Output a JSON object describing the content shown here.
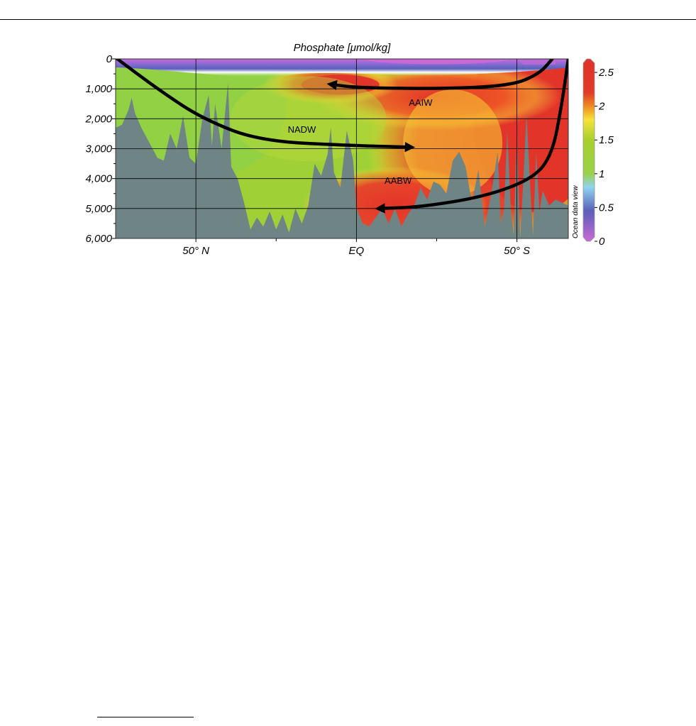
{
  "page": {
    "background": "#ffffff"
  },
  "chart_data": {
    "type": "heatmap",
    "title": "Phosphate [μmol/kg]",
    "ylim": [
      0,
      6000
    ],
    "y_inverted": true,
    "y_ticks": [
      {
        "value": 0,
        "label": "0"
      },
      {
        "value": 1000,
        "label": "1,000"
      },
      {
        "value": 2000,
        "label": "2,000"
      },
      {
        "value": 3000,
        "label": "3,000"
      },
      {
        "value": 4000,
        "label": "4,000"
      },
      {
        "value": 5000,
        "label": "5,000"
      },
      {
        "value": 6000,
        "label": "6,000"
      }
    ],
    "x_ticks": [
      {
        "label": "50° N",
        "lat": 50
      },
      {
        "label": "EQ",
        "lat": 0
      },
      {
        "label": "50° S",
        "lat": -50
      }
    ],
    "xlim_lat": [
      75,
      -66
    ],
    "grid": true,
    "colorbar": {
      "min": 0,
      "max": 2.7,
      "ticks": [
        {
          "value": 0,
          "label": "0"
        },
        {
          "value": 0.5,
          "label": "0.5"
        },
        {
          "value": 1,
          "label": "1"
        },
        {
          "value": 1.5,
          "label": "1.5"
        },
        {
          "value": 2,
          "label": "2"
        },
        {
          "value": 2.5,
          "label": "2.5"
        }
      ],
      "colors": [
        {
          "value": 0,
          "color": "#c86ad6"
        },
        {
          "value": 0.45,
          "color": "#5a5fb8"
        },
        {
          "value": 0.8,
          "color": "#8fd3f0"
        },
        {
          "value": 1.0,
          "color": "#9ad14a"
        },
        {
          "value": 1.5,
          "color": "#a8d02c"
        },
        {
          "value": 1.8,
          "color": "#f6e23a"
        },
        {
          "value": 2.0,
          "color": "#f08a20"
        },
        {
          "value": 2.2,
          "color": "#e03a28"
        },
        {
          "value": 2.7,
          "color": "#e0302a"
        }
      ],
      "side_label": "Ocean data view"
    },
    "water_masses": [
      {
        "label": "AAIW",
        "lat": -20,
        "depth": 1450
      },
      {
        "label": "NADW",
        "lat": 17,
        "depth": 2350
      },
      {
        "label": "AABW",
        "lat": -13,
        "depth": 4050
      }
    ],
    "flows": [
      {
        "name": "NADW",
        "direction": "southward",
        "points": [
          [
            74.5,
            0
          ],
          [
            62,
            1000
          ],
          [
            48,
            2000
          ],
          [
            30,
            2750
          ],
          [
            0,
            2900
          ],
          [
            -17,
            2950
          ]
        ]
      },
      {
        "name": "AAIW",
        "direction": "northward",
        "points": [
          [
            -61,
            0
          ],
          [
            -57,
            500
          ],
          [
            -48,
            900
          ],
          [
            -25,
            1000
          ],
          [
            0,
            960
          ],
          [
            8,
            850
          ]
        ]
      },
      {
        "name": "AABW",
        "direction": "northward",
        "points": [
          [
            -66,
            0
          ],
          [
            -64,
            1500
          ],
          [
            -61,
            3200
          ],
          [
            -55,
            4000
          ],
          [
            -40,
            4600
          ],
          [
            -20,
            4950
          ],
          [
            -7,
            5000
          ]
        ]
      }
    ],
    "bathymetry_depth_m": [
      [
        75,
        2300
      ],
      [
        73,
        2200
      ],
      [
        71,
        1700
      ],
      [
        70,
        1300
      ],
      [
        69,
        1800
      ],
      [
        67,
        2300
      ],
      [
        64,
        2900
      ],
      [
        62,
        3300
      ],
      [
        60,
        3400
      ],
      [
        58,
        2500
      ],
      [
        56,
        3000
      ],
      [
        54,
        1900
      ],
      [
        52,
        3300
      ],
      [
        50,
        3500
      ],
      [
        48,
        2000
      ],
      [
        46,
        1200
      ],
      [
        45,
        2900
      ],
      [
        44,
        1500
      ],
      [
        42,
        3000
      ],
      [
        40,
        800
      ],
      [
        39,
        3600
      ],
      [
        37,
        4000
      ],
      [
        35,
        4800
      ],
      [
        33,
        5700
      ],
      [
        31,
        5300
      ],
      [
        29,
        5600
      ],
      [
        27,
        5100
      ],
      [
        25,
        5700
      ],
      [
        23,
        5200
      ],
      [
        21,
        5800
      ],
      [
        19,
        5000
      ],
      [
        17,
        5500
      ],
      [
        15,
        4900
      ],
      [
        13,
        3500
      ],
      [
        11,
        3900
      ],
      [
        9,
        3200
      ],
      [
        8,
        2300
      ],
      [
        7,
        3800
      ],
      [
        5,
        4300
      ],
      [
        3,
        2400
      ],
      [
        1,
        3400
      ],
      [
        0,
        5000
      ],
      [
        -2,
        5500
      ],
      [
        -4,
        5600
      ],
      [
        -6,
        5300
      ],
      [
        -8,
        5000
      ],
      [
        -10,
        5500
      ],
      [
        -12,
        5000
      ],
      [
        -14,
        5600
      ],
      [
        -16,
        5200
      ],
      [
        -18,
        4900
      ],
      [
        -20,
        4300
      ],
      [
        -22,
        4700
      ],
      [
        -24,
        4100
      ],
      [
        -26,
        4200
      ],
      [
        -28,
        4500
      ],
      [
        -30,
        3400
      ],
      [
        -32,
        3100
      ],
      [
        -34,
        3600
      ],
      [
        -36,
        4800
      ],
      [
        -38,
        3700
      ],
      [
        -40,
        5600
      ],
      [
        -42,
        4500
      ],
      [
        -44,
        3100
      ],
      [
        -45,
        5500
      ],
      [
        -46,
        5000
      ],
      [
        -47,
        2400
      ],
      [
        -48,
        4900
      ],
      [
        -49,
        5900
      ],
      [
        -50,
        2500
      ],
      [
        -51,
        6000
      ],
      [
        -52,
        4000
      ],
      [
        -53,
        1800
      ],
      [
        -54,
        4000
      ],
      [
        -55,
        5900
      ],
      [
        -56,
        3100
      ],
      [
        -57,
        5100
      ],
      [
        -58,
        4400
      ],
      [
        -60,
        4900
      ],
      [
        -62,
        4700
      ],
      [
        -66,
        4900
      ]
    ],
    "phosphate_samples": [
      {
        "lat": 58,
        "depth": 1000,
        "value": 1.25
      },
      {
        "lat": 20,
        "depth": 1800,
        "value": 1.5
      },
      {
        "lat": 10,
        "depth": 850,
        "value": 2.2
      },
      {
        "lat": -20,
        "depth": 1400,
        "value": 2.2
      },
      {
        "lat": -45,
        "depth": 3000,
        "value": 2.3
      },
      {
        "lat": -10,
        "depth": 4800,
        "value": 2.2
      },
      {
        "lat": 20,
        "depth": 4500,
        "value": 1.45
      }
    ]
  }
}
